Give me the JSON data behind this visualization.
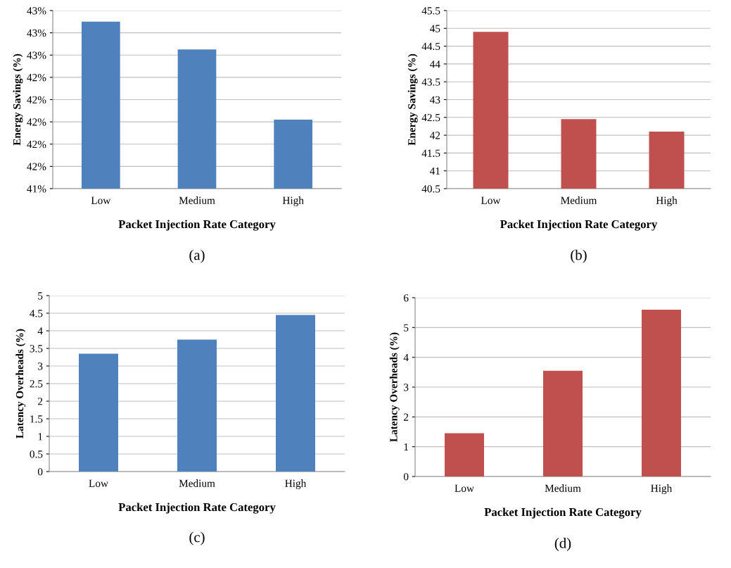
{
  "chart_data": [
    {
      "type": "bar",
      "categories": [
        "Low",
        "Medium",
        "High"
      ],
      "values": [
        42.9,
        42.65,
        42.02
      ],
      "color": "#4f81bd",
      "xlabel": "Packet Injection Rate Category",
      "ylabel": "Energy Savings (%)",
      "ylim": [
        41.4,
        43.0
      ],
      "yticks": [
        {
          "value": 41.4,
          "label": "41%"
        },
        {
          "value": 41.6,
          "label": "42%"
        },
        {
          "value": 41.8,
          "label": "42%"
        },
        {
          "value": 42.0,
          "label": "42%"
        },
        {
          "value": 42.2,
          "label": "42%"
        },
        {
          "value": 42.4,
          "label": "42%"
        },
        {
          "value": 42.6,
          "label": "43%"
        },
        {
          "value": 42.8,
          "label": "43%"
        },
        {
          "value": 43.0,
          "label": "43%"
        }
      ],
      "grid": "y",
      "annotations": [
        "(a)"
      ]
    },
    {
      "type": "bar",
      "categories": [
        "Low",
        "Medium",
        "High"
      ],
      "values": [
        44.9,
        42.45,
        42.1
      ],
      "color": "#c0504d",
      "xlabel": "Packet Injection Rate Category",
      "ylabel": "Energy Savings (%)",
      "ylim": [
        40.5,
        45.5
      ],
      "yticks": [
        40.5,
        41,
        41.5,
        42,
        42.5,
        43,
        43.5,
        44,
        44.5,
        45,
        45.5
      ],
      "grid": "y",
      "annotations": [
        "(b)"
      ]
    },
    {
      "type": "bar",
      "categories": [
        "Low",
        "Medium",
        "High"
      ],
      "values": [
        3.35,
        3.75,
        4.45
      ],
      "color": "#4f81bd",
      "xlabel": "Packet Injection Rate Category",
      "ylabel": "Latency Overheads (%)",
      "ylim": [
        0,
        5
      ],
      "yticks": [
        0,
        0.5,
        1,
        1.5,
        2,
        2.5,
        3,
        3.5,
        4,
        4.5,
        5
      ],
      "grid": "y",
      "annotations": [
        "(c)"
      ]
    },
    {
      "type": "bar",
      "categories": [
        "Low",
        "Medium",
        "High"
      ],
      "values": [
        1.45,
        3.55,
        5.6
      ],
      "color": "#c0504d",
      "xlabel": "Packet Injection Rate Category",
      "ylabel": "Latency Overheads (%)",
      "ylim": [
        0,
        6
      ],
      "yticks": [
        0,
        1,
        2,
        3,
        4,
        5,
        6
      ],
      "grid": "y",
      "annotations": [
        "(d)"
      ]
    }
  ]
}
